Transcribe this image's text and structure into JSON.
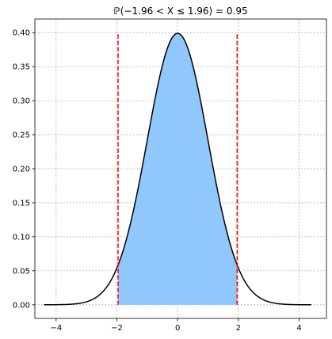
{
  "chart_data": {
    "type": "area",
    "title": "ℙ(−1.96 < X ≤ 1.96) = 0.95",
    "xlabel": "",
    "ylabel": "",
    "xlim": [
      -4.7,
      4.9
    ],
    "ylim": [
      -0.02,
      0.42
    ],
    "grid": true,
    "x_ticks": [
      -4,
      -2,
      0,
      2,
      4
    ],
    "x_tick_labels": [
      "−4",
      "−2",
      "0",
      "2",
      "4"
    ],
    "y_ticks": [
      0.0,
      0.05,
      0.1,
      0.15,
      0.2,
      0.25,
      0.3,
      0.35,
      0.4
    ],
    "y_tick_labels": [
      "0.00",
      "0.05",
      "0.10",
      "0.15",
      "0.20",
      "0.25",
      "0.30",
      "0.35",
      "0.40"
    ],
    "series": [
      {
        "kind": "line",
        "color": "#000000",
        "x": [
          -4.4,
          -4.0,
          -3.6,
          -3.2,
          -2.8,
          -2.4,
          -2.0,
          -1.6,
          -1.2,
          -0.8,
          -0.4,
          0.0,
          0.4,
          0.8,
          1.2,
          1.6,
          2.0,
          2.4,
          2.8,
          3.2,
          3.6,
          4.0,
          4.4
        ],
        "y": [
          0.0,
          0.0001,
          0.0006,
          0.0024,
          0.0079,
          0.0224,
          0.054,
          0.1109,
          0.1942,
          0.2897,
          0.3683,
          0.3989,
          0.3683,
          0.2897,
          0.1942,
          0.1109,
          0.054,
          0.0224,
          0.0079,
          0.0024,
          0.0006,
          0.0001,
          0.0
        ]
      },
      {
        "kind": "fill",
        "color": "#90c8fb",
        "x_from": -1.96,
        "x_to": 1.96
      }
    ],
    "vlines": [
      {
        "x": -1.96,
        "y_from": 0.0,
        "y_to": 0.4,
        "color": "#ff0000",
        "style": "dashed"
      },
      {
        "x": 1.96,
        "y_from": 0.0,
        "y_to": 0.4,
        "color": "#ff0000",
        "style": "dashed"
      }
    ]
  }
}
